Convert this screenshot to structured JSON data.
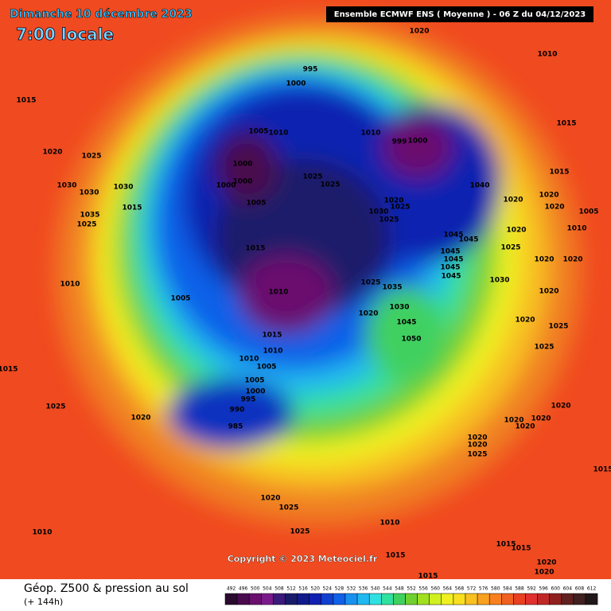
{
  "header": {
    "date": "Dimanche 10 décembre 2023",
    "time": "7:00 locale",
    "model": "Ensemble ECMWF ENS  ( Moyenne )  -  06 Z du 04/12/2023"
  },
  "copyright": "Copyright © 2023 Meteociel.fr",
  "footer": {
    "title": "Géop. Z500 & pression au sol",
    "lead": "(+ 144h)"
  },
  "scale": {
    "labels": [
      492,
      496,
      500,
      504,
      508,
      512,
      516,
      520,
      524,
      528,
      532,
      536,
      540,
      544,
      548,
      552,
      556,
      560,
      564,
      568,
      572,
      576,
      580,
      584,
      588,
      592,
      596,
      600,
      604,
      608,
      612
    ],
    "colors": [
      "#2a0a2e",
      "#4a0a4e",
      "#6a106e",
      "#7a1a8a",
      "#3a1a7a",
      "#1a1a6a",
      "#101a8a",
      "#1020b0",
      "#1040d0",
      "#1060e8",
      "#1890f0",
      "#20b8f0",
      "#30e0e0",
      "#30e0a0",
      "#40d060",
      "#70d030",
      "#a0e020",
      "#d0f020",
      "#f0f020",
      "#f8e020",
      "#f8c020",
      "#f8a020",
      "#f88020",
      "#f06020",
      "#e84020",
      "#e03030",
      "#c02828",
      "#902020",
      "#602020",
      "#402020",
      "#201818"
    ]
  },
  "isobars": [
    995,
    1000,
    1020,
    1010,
    1015,
    1015,
    1005,
    1010,
    1010,
    999,
    1000,
    1020,
    1025,
    1000,
    1000,
    1000,
    1025,
    1025,
    1015,
    1030,
    1030,
    1030,
    1040,
    1020,
    1020,
    1005,
    1020,
    1025,
    1020,
    1005,
    1015,
    1030,
    1035,
    1025,
    1025,
    1020,
    1010,
    1045,
    1045,
    1025,
    1015,
    1045,
    1045,
    1020,
    1020,
    1045,
    1045,
    1030,
    1010,
    1025,
    1035,
    1010,
    1020,
    1005,
    1030,
    1020,
    1045,
    1020,
    1025,
    1015,
    1050,
    1025,
    1010,
    1010,
    1005,
    1015,
    1005,
    1000,
    995,
    1020,
    1025,
    990,
    1020,
    1020,
    1020,
    985,
    1020,
    1020,
    1020,
    1025,
    1015,
    1020,
    1025,
    1025,
    1010,
    1010,
    1015,
    1015,
    1015,
    1020,
    1020,
    1015
  ]
}
